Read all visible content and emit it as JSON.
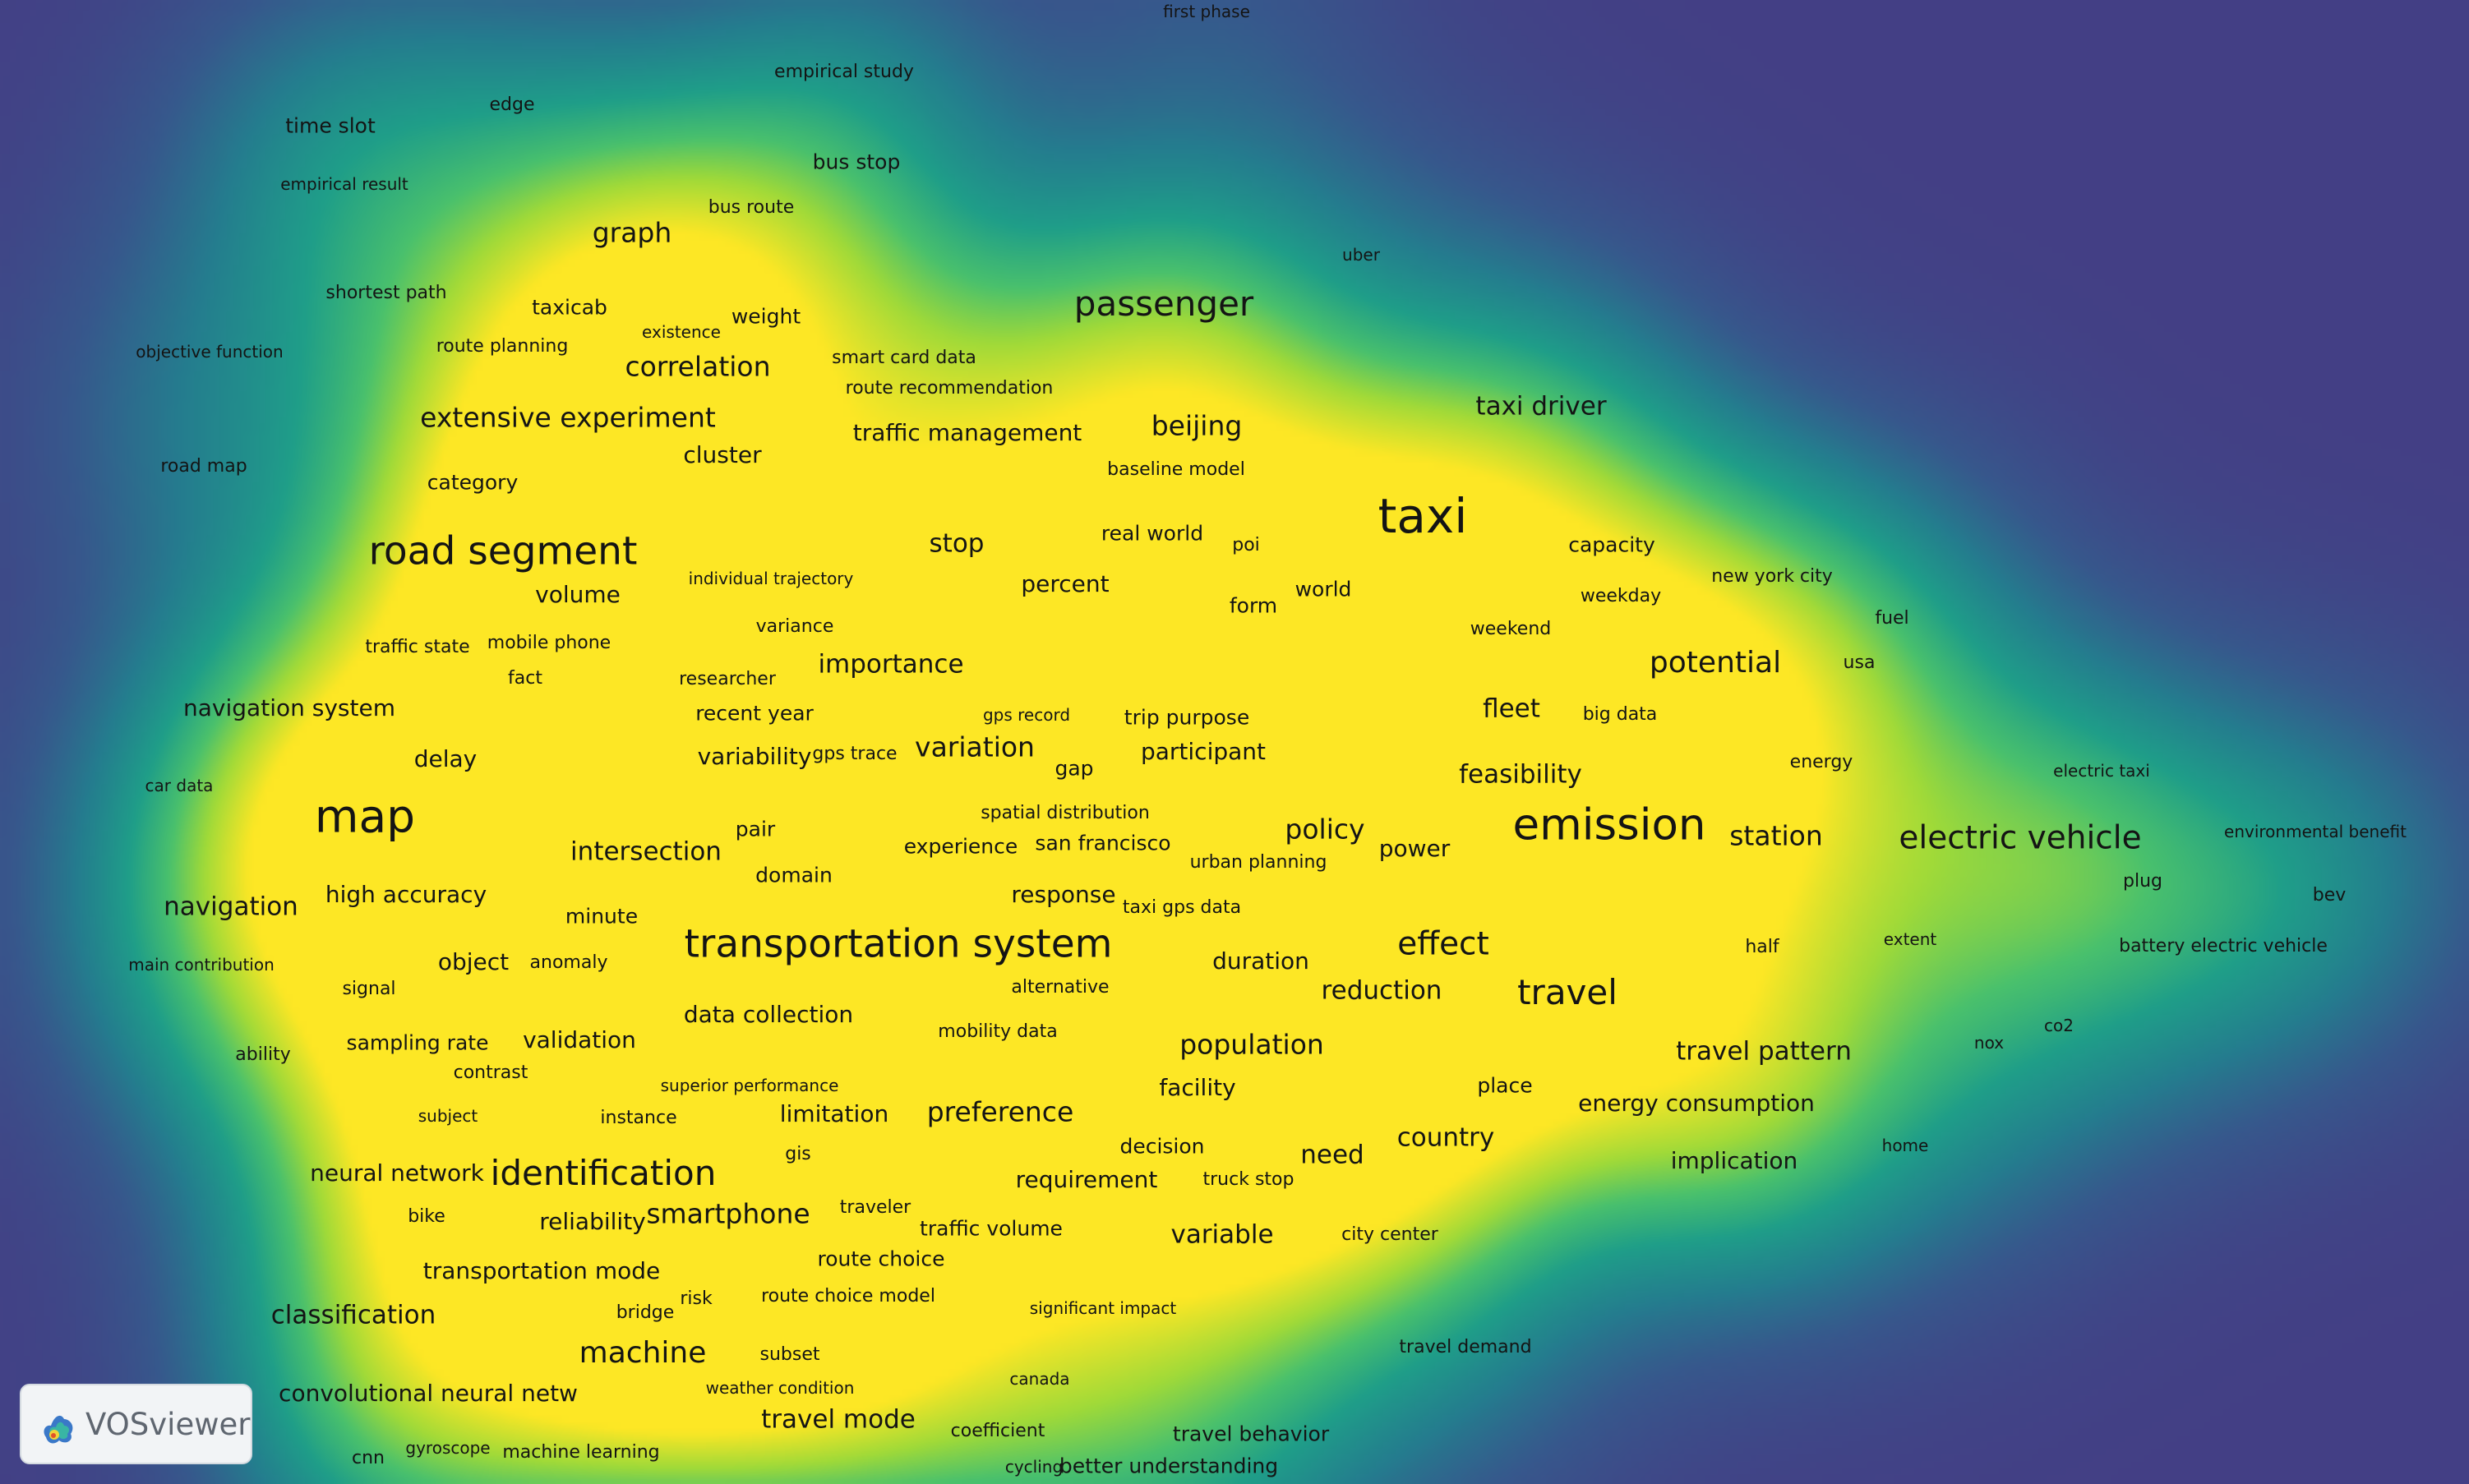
{
  "app": {
    "logo_text": "VOSviewer"
  },
  "colors": {
    "background": "#433f85",
    "density_low": "#433f85",
    "density_mid": "#1f958b",
    "density_high": "#fde725",
    "label_text": "#141414"
  },
  "terms": [
    {
      "label": "first phase",
      "w": 1
    },
    {
      "label": "empirical study",
      "w": 1.5
    },
    {
      "label": "time slot",
      "w": 2
    },
    {
      "label": "edge",
      "w": 1.5
    },
    {
      "label": "empirical result",
      "w": 1
    },
    {
      "label": "bus stop",
      "w": 2
    },
    {
      "label": "bus route",
      "w": 1.5
    },
    {
      "label": "graph",
      "w": 3.5
    },
    {
      "label": "uber",
      "w": 1
    },
    {
      "label": "shortest path",
      "w": 1.5
    },
    {
      "label": "taxicab",
      "w": 2
    },
    {
      "label": "weight",
      "w": 2
    },
    {
      "label": "existence",
      "w": 1
    },
    {
      "label": "objective function",
      "w": 1
    },
    {
      "label": "route planning",
      "w": 1.5
    },
    {
      "label": "smart card data",
      "w": 1.5
    },
    {
      "label": "correlation",
      "w": 3.5
    },
    {
      "label": "passenger",
      "w": 5
    },
    {
      "label": "route recommendation",
      "w": 1.5
    },
    {
      "label": "extensive experiment",
      "w": 3.5
    },
    {
      "label": "taxi driver",
      "w": 3
    },
    {
      "label": "beijing",
      "w": 3.5
    },
    {
      "label": "traffic management",
      "w": 2.5
    },
    {
      "label": "cluster",
      "w": 2.5
    },
    {
      "label": "road map",
      "w": 1.5
    },
    {
      "label": "baseline model",
      "w": 1.5
    },
    {
      "label": "category",
      "w": 2
    },
    {
      "label": "taxi",
      "w": 8
    },
    {
      "label": "real world",
      "w": 2
    },
    {
      "label": "road segment",
      "w": 6
    },
    {
      "label": "stop",
      "w": 3
    },
    {
      "label": "poi",
      "w": 1.5
    },
    {
      "label": "capacity",
      "w": 2
    },
    {
      "label": "individual trajectory",
      "w": 1
    },
    {
      "label": "volume",
      "w": 2.5
    },
    {
      "label": "percent",
      "w": 2.5
    },
    {
      "label": "world",
      "w": 2
    },
    {
      "label": "new york city",
      "w": 1.5
    },
    {
      "label": "weekday",
      "w": 1.5
    },
    {
      "label": "form",
      "w": 2
    },
    {
      "label": "fuel",
      "w": 1.5
    },
    {
      "label": "variance",
      "w": 1.5
    },
    {
      "label": "weekend",
      "w": 1.5
    },
    {
      "label": "traffic state",
      "w": 1.5
    },
    {
      "label": "mobile phone",
      "w": 1.5
    },
    {
      "label": "potential",
      "w": 4
    },
    {
      "label": "importance",
      "w": 3
    },
    {
      "label": "usa",
      "w": 1.5
    },
    {
      "label": "fact",
      "w": 1.5
    },
    {
      "label": "researcher",
      "w": 1.5
    },
    {
      "label": "navigation system",
      "w": 2.5
    },
    {
      "label": "gps record",
      "w": 1
    },
    {
      "label": "fleet",
      "w": 3
    },
    {
      "label": "recent year",
      "w": 2
    },
    {
      "label": "trip purpose",
      "w": 2
    },
    {
      "label": "big data",
      "w": 1.5
    },
    {
      "label": "variation",
      "w": 3.5
    },
    {
      "label": "variability",
      "w": 2.5
    },
    {
      "label": "gps trace",
      "w": 1.5
    },
    {
      "label": "participant",
      "w": 2.5
    },
    {
      "label": "delay",
      "w": 2.5
    },
    {
      "label": "gap",
      "w": 2
    },
    {
      "label": "energy",
      "w": 1.5
    },
    {
      "label": "feasibility",
      "w": 3
    },
    {
      "label": "electric taxi",
      "w": 1
    },
    {
      "label": "car data",
      "w": 1
    },
    {
      "label": "spatial distribution",
      "w": 1.5
    },
    {
      "label": "map",
      "w": 7.5
    },
    {
      "label": "pair",
      "w": 2
    },
    {
      "label": "emission",
      "w": 7
    },
    {
      "label": "policy",
      "w": 3.5
    },
    {
      "label": "environmental benefit",
      "w": 1
    },
    {
      "label": "electric vehicle",
      "w": 4.5
    },
    {
      "label": "station",
      "w": 3.5
    },
    {
      "label": "experience",
      "w": 2
    },
    {
      "label": "san francisco",
      "w": 2
    },
    {
      "label": "power",
      "w": 2.5
    },
    {
      "label": "intersection",
      "w": 3
    },
    {
      "label": "urban planning",
      "w": 1.5
    },
    {
      "label": "domain",
      "w": 2
    },
    {
      "label": "plug",
      "w": 1.5
    },
    {
      "label": "high accuracy",
      "w": 2.5
    },
    {
      "label": "response",
      "w": 2.5
    },
    {
      "label": "bev",
      "w": 1.5
    },
    {
      "label": "navigation",
      "w": 3
    },
    {
      "label": "taxi gps data",
      "w": 1.5
    },
    {
      "label": "minute",
      "w": 2
    },
    {
      "label": "extent",
      "w": 1
    },
    {
      "label": "effect",
      "w": 4.5
    },
    {
      "label": "transportation system",
      "w": 6
    },
    {
      "label": "half",
      "w": 1.5
    },
    {
      "label": "battery electric vehicle",
      "w": 1.5
    },
    {
      "label": "object",
      "w": 2.5
    },
    {
      "label": "duration",
      "w": 2.5
    },
    {
      "label": "main contribution",
      "w": 1
    },
    {
      "label": "anomaly",
      "w": 1.5
    },
    {
      "label": "alternative",
      "w": 1.5
    },
    {
      "label": "signal",
      "w": 1.5
    },
    {
      "label": "reduction",
      "w": 3
    },
    {
      "label": "travel",
      "w": 5
    },
    {
      "label": "data collection",
      "w": 2.5
    },
    {
      "label": "co2",
      "w": 1
    },
    {
      "label": "mobility data",
      "w": 1.5
    },
    {
      "label": "nox",
      "w": 1
    },
    {
      "label": "validation",
      "w": 2.5
    },
    {
      "label": "population",
      "w": 3.5
    },
    {
      "label": "travel pattern",
      "w": 3
    },
    {
      "label": "sampling rate",
      "w": 2
    },
    {
      "label": "ability",
      "w": 1.5
    },
    {
      "label": "contrast",
      "w": 1.5
    },
    {
      "label": "superior performance",
      "w": 1
    },
    {
      "label": "facility",
      "w": 2.5
    },
    {
      "label": "place",
      "w": 2
    },
    {
      "label": "energy consumption",
      "w": 2.5
    },
    {
      "label": "subject",
      "w": 1
    },
    {
      "label": "limitation",
      "w": 2.5
    },
    {
      "label": "preference",
      "w": 3.5
    },
    {
      "label": "instance",
      "w": 1.5
    },
    {
      "label": "country",
      "w": 3
    },
    {
      "label": "decision",
      "w": 2
    },
    {
      "label": "home",
      "w": 1
    },
    {
      "label": "gis",
      "w": 1.5
    },
    {
      "label": "need",
      "w": 3
    },
    {
      "label": "implication",
      "w": 2.5
    },
    {
      "label": "identification",
      "w": 5
    },
    {
      "label": "neural network",
      "w": 2.5
    },
    {
      "label": "requirement",
      "w": 2.5
    },
    {
      "label": "truck stop",
      "w": 1.5
    },
    {
      "label": "traveler",
      "w": 1.5
    },
    {
      "label": "smartphone",
      "w": 3.5
    },
    {
      "label": "bike",
      "w": 1.5
    },
    {
      "label": "reliability",
      "w": 2.5
    },
    {
      "label": "traffic volume",
      "w": 2
    },
    {
      "label": "variable",
      "w": 3
    },
    {
      "label": "city center",
      "w": 1.5
    },
    {
      "label": "route choice",
      "w": 2
    },
    {
      "label": "transportation mode",
      "w": 2.5
    },
    {
      "label": "risk",
      "w": 1.5
    },
    {
      "label": "route choice model",
      "w": 1.5
    },
    {
      "label": "significant impact",
      "w": 1
    },
    {
      "label": "classification",
      "w": 3
    },
    {
      "label": "bridge",
      "w": 1.5
    },
    {
      "label": "travel demand",
      "w": 1.5
    },
    {
      "label": "machine",
      "w": 4
    },
    {
      "label": "subset",
      "w": 1.5
    },
    {
      "label": "canada",
      "w": 1
    },
    {
      "label": "weather condition",
      "w": 1
    },
    {
      "label": "convolutional neural netw",
      "w": 2.5
    },
    {
      "label": "travel mode",
      "w": 3
    },
    {
      "label": "coefficient",
      "w": 1.5
    },
    {
      "label": "travel behavior",
      "w": 2
    },
    {
      "label": "gyroscope",
      "w": 1
    },
    {
      "label": "cnn",
      "w": 1.5
    },
    {
      "label": "machine learning",
      "w": 1.5
    },
    {
      "label": "cycling",
      "w": 1
    },
    {
      "label": "better understanding",
      "w": 2
    }
  ]
}
